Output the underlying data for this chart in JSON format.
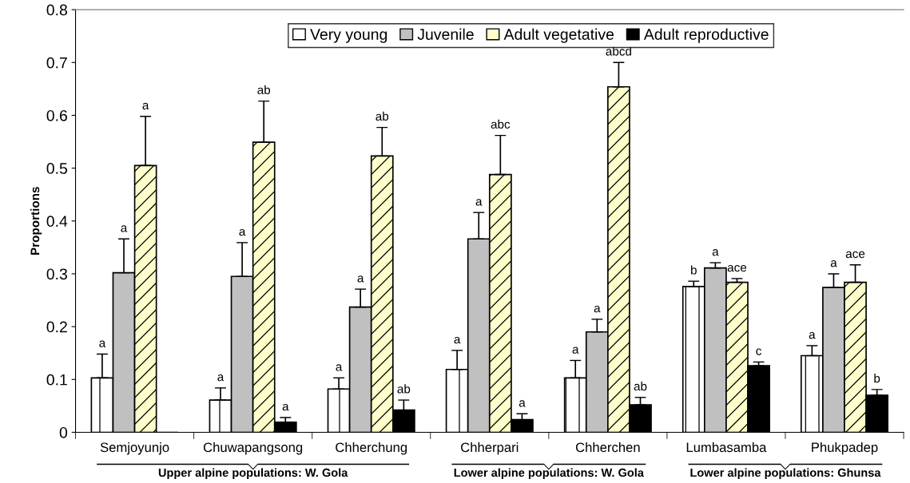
{
  "chart_data": {
    "type": "bar",
    "ylabel": "Proportions",
    "categories": [
      "Semjoyunjo",
      "Chuwapangsong",
      "Chherchung",
      "Chherpari",
      "Chherchen",
      "Lumbasamba",
      "Phukpadep"
    ],
    "series": [
      {
        "name": "Very young",
        "color": "#ffffff",
        "values": [
          0.103,
          0.061,
          0.082,
          0.119,
          0.103,
          0.276,
          0.145
        ],
        "errors": [
          [
            0.103,
            0.148
          ],
          [
            0.061,
            0.084
          ],
          [
            0.082,
            0.103
          ],
          [
            0.119,
            0.155
          ],
          [
            0.103,
            0.136
          ],
          [
            0.276,
            0.286
          ],
          [
            0.145,
            0.164
          ]
        ]
      },
      {
        "name": "Juvenile",
        "color": "#c0c0c0",
        "values": [
          0.302,
          0.295,
          0.237,
          0.366,
          0.19,
          0.311,
          0.274
        ],
        "errors": [
          [
            0.302,
            0.366
          ],
          [
            0.295,
            0.359
          ],
          [
            0.237,
            0.271
          ],
          [
            0.366,
            0.416
          ],
          [
            0.19,
            0.214
          ],
          [
            0.311,
            0.321
          ],
          [
            0.274,
            0.3
          ]
        ]
      },
      {
        "name": "Adult vegetative",
        "color": "#ffffcc",
        "values": [
          0.505,
          0.549,
          0.523,
          0.488,
          0.654,
          0.284,
          0.284
        ],
        "errors": [
          [
            0.505,
            0.598
          ],
          [
            0.549,
            0.627
          ],
          [
            0.523,
            0.577
          ],
          [
            0.488,
            0.562
          ],
          [
            0.654,
            0.7
          ],
          [
            0.284,
            0.291
          ],
          [
            0.284,
            0.317
          ]
        ]
      },
      {
        "name": "Adult reproductive",
        "color": "#000000",
        "values": [
          0,
          0.019,
          0.042,
          0.024,
          0.052,
          0.126,
          0.07
        ],
        "errors": [
          null,
          [
            0.019,
            0.028
          ],
          [
            0.042,
            0.061
          ],
          [
            0.024,
            0.035
          ],
          [
            0.052,
            0.066
          ],
          [
            0.126,
            0.133
          ],
          [
            0.07,
            0.081
          ]
        ]
      }
    ],
    "ylim": [
      0,
      0.8
    ],
    "yticks": [
      0,
      0.1,
      0.2,
      0.3,
      0.4,
      0.5,
      0.6,
      0.7,
      0.8
    ],
    "legend": "top",
    "grid": false,
    "annotations": [
      "Upper alpine populations: W. Gola",
      "Lower alpine populations: W. Gola",
      "Lower alpine populations: Ghunsa",
      "a",
      "a",
      "a",
      "a",
      "a",
      "ab",
      "a",
      "a",
      "a",
      "ab",
      "ab",
      "a",
      "a",
      "abc",
      "a",
      "a",
      "a",
      "abcd",
      "ab",
      "b",
      "a",
      "ace",
      "c",
      "a",
      "a",
      "ace",
      "b"
    ]
  }
}
